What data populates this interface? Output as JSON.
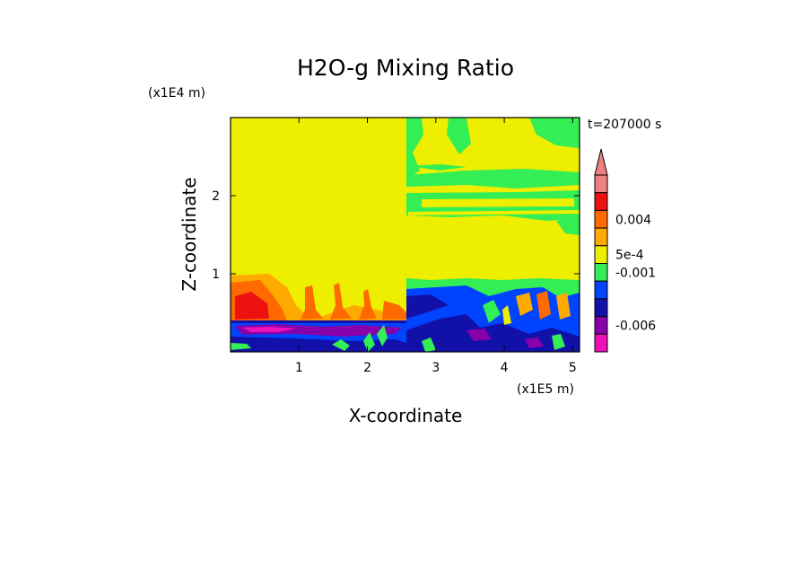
{
  "chart_data": {
    "type": "heatmap",
    "title": "H2O-g Mixing Ratio",
    "xlabel": "X-coordinate",
    "ylabel": "Z-coordinate",
    "x_unit": "(x1E5 m)",
    "y_unit": "(x1E4 m)",
    "time_label": "t=207000 s",
    "xlim": [
      0,
      5.1
    ],
    "ylim": [
      0,
      3.0
    ],
    "x_ticks": [
      "1",
      "2",
      "3",
      "4",
      "5"
    ],
    "y_ticks": [
      "1",
      "2"
    ],
    "colorbar": {
      "levels": [
        "",
        "",
        "0.004",
        "",
        "5e-4",
        "-0.001",
        "",
        "",
        "-0.006",
        ""
      ],
      "colors": [
        "#f08080",
        "#ee1111",
        "#ff6a00",
        "#ffaa00",
        "#eeee00",
        "#33ee55",
        "#0044ff",
        "#1111aa",
        "#8800aa",
        "#ee11bb"
      ],
      "extend": "max",
      "extend_color": "#f08080"
    }
  }
}
